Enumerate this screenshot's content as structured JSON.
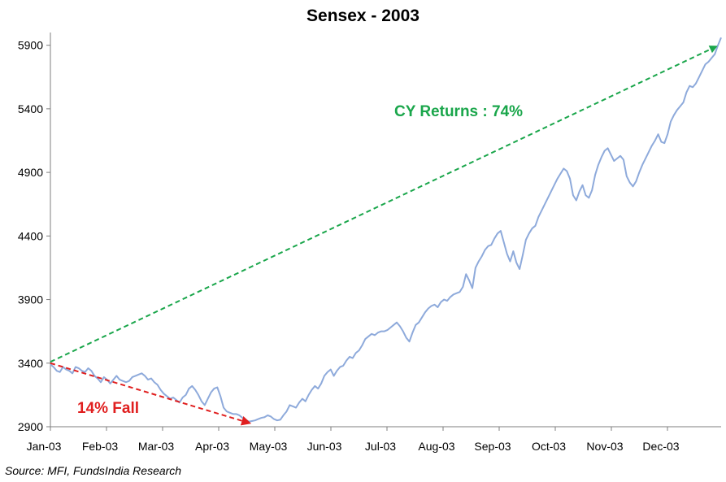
{
  "chart_data": {
    "type": "line",
    "title": "Sensex - 2003",
    "source": "Source: MFI, FundsIndia Research",
    "xlabel": "",
    "ylabel": "",
    "ylim": [
      2900,
      6000
    ],
    "yticks": [
      2900,
      3400,
      3900,
      4400,
      4900,
      5400,
      5900
    ],
    "xticks": [
      "Jan-03",
      "Feb-03",
      "Mar-03",
      "Apr-03",
      "May-03",
      "Jun-03",
      "Jul-03",
      "Aug-03",
      "Sep-03",
      "Oct-03",
      "Nov-03",
      "Dec-03"
    ],
    "grid": false,
    "series_color": "#8eaadb",
    "series": [
      {
        "values": [
          3390,
          3370,
          3340,
          3330,
          3370,
          3350,
          3340,
          3320,
          3370,
          3360,
          3340,
          3330,
          3360,
          3340,
          3300,
          3280,
          3250,
          3290,
          3270,
          3240,
          3270,
          3300,
          3270,
          3260,
          3250,
          3260,
          3290,
          3300,
          3310,
          3320,
          3300,
          3270,
          3280,
          3250,
          3230,
          3190,
          3160,
          3140,
          3120,
          3130,
          3110,
          3090,
          3130,
          3150,
          3200,
          3220,
          3190,
          3150,
          3100,
          3070,
          3120,
          3170,
          3200,
          3210,
          3140,
          3050,
          3020,
          3010,
          3000,
          3000,
          2990,
          2970,
          2955,
          2940,
          2945,
          2950,
          2960,
          2970,
          2975,
          2990,
          2980,
          2960,
          2950,
          2955,
          2990,
          3020,
          3070,
          3060,
          3050,
          3090,
          3120,
          3100,
          3150,
          3190,
          3220,
          3200,
          3240,
          3300,
          3330,
          3350,
          3300,
          3340,
          3370,
          3380,
          3420,
          3450,
          3440,
          3480,
          3500,
          3540,
          3590,
          3610,
          3630,
          3620,
          3640,
          3650,
          3650,
          3660,
          3680,
          3700,
          3720,
          3690,
          3650,
          3600,
          3570,
          3640,
          3700,
          3720,
          3760,
          3800,
          3830,
          3850,
          3860,
          3840,
          3880,
          3900,
          3890,
          3920,
          3940,
          3950,
          3960,
          4000,
          4100,
          4050,
          3990,
          4150,
          4200,
          4240,
          4290,
          4320,
          4330,
          4380,
          4420,
          4440,
          4350,
          4260,
          4200,
          4280,
          4190,
          4140,
          4250,
          4370,
          4420,
          4460,
          4480,
          4550,
          4600,
          4650,
          4700,
          4750,
          4800,
          4850,
          4890,
          4930,
          4910,
          4850,
          4720,
          4680,
          4750,
          4800,
          4720,
          4700,
          4760,
          4880,
          4960,
          5020,
          5070,
          5090,
          5040,
          4990,
          5010,
          5030,
          5000,
          4870,
          4820,
          4790,
          4830,
          4900,
          4960,
          5010,
          5060,
          5110,
          5150,
          5200,
          5140,
          5130,
          5200,
          5300,
          5350,
          5390,
          5420,
          5450,
          5530,
          5580,
          5570,
          5600,
          5650,
          5700,
          5750,
          5770,
          5800,
          5830,
          5900,
          5960
        ]
      }
    ],
    "annotations": [
      {
        "text": "CY Returns : 74%",
        "color": "#1aa64b",
        "from": {
          "x": 0,
          "y": 3410
        },
        "to": {
          "x": 1,
          "y": 5890
        }
      },
      {
        "text": "14% Fall",
        "color": "#e01f1f",
        "from": {
          "x": 0,
          "y": 3400
        },
        "to": {
          "x": 0.296,
          "y": 2930
        }
      }
    ]
  }
}
